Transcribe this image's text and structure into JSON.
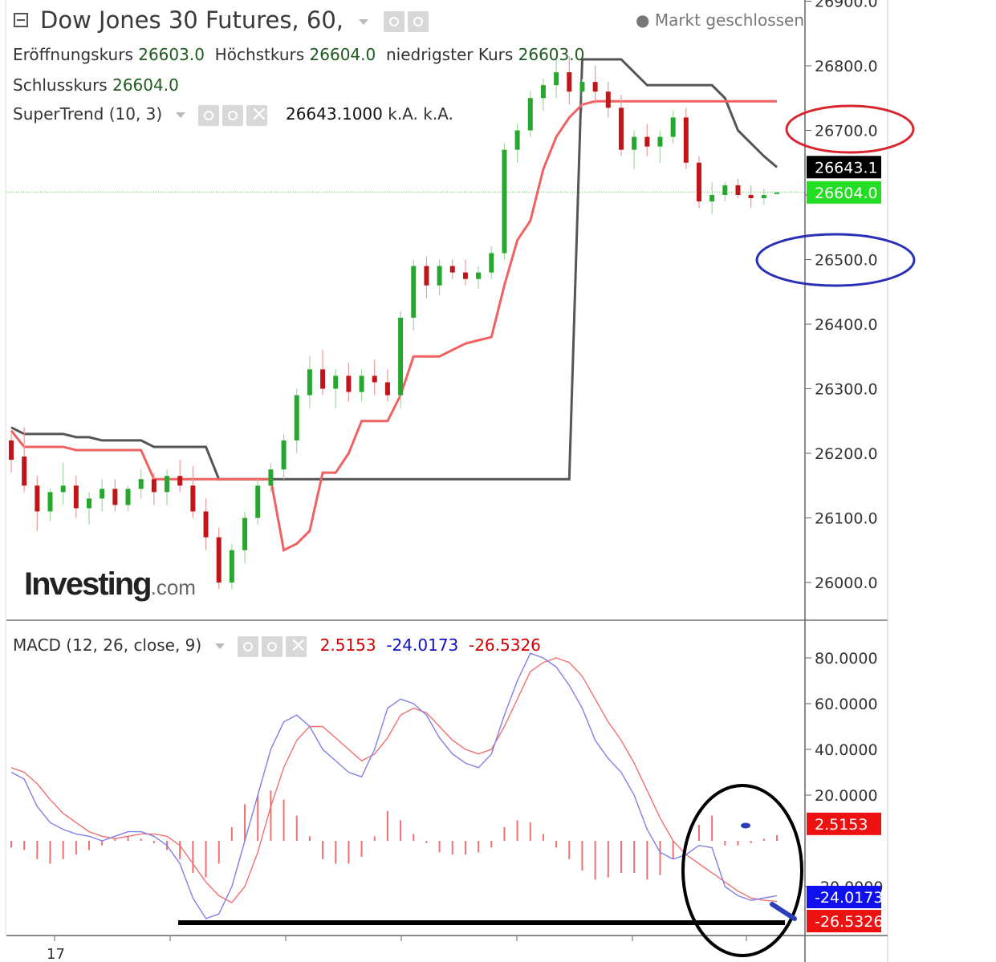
{
  "header": {
    "title": "Dow Jones 30 Futures, 60,",
    "market_status": "Markt geschlossen",
    "ohlc": [
      {
        "label": "Eröffnungskurs",
        "value": "26603.0"
      },
      {
        "label": "Höchstkurs",
        "value": "26604.0"
      },
      {
        "label": "niedrigster Kurs",
        "value": "26603.0"
      },
      {
        "label": "Schlusskurs",
        "value": "26604.0"
      }
    ],
    "supertrend": {
      "label": "SuperTrend (10, 3)",
      "value": "26643.1000",
      "na1": "k.A.",
      "na2": "k.A."
    },
    "macd": {
      "label": "MACD (12, 26, close, 9)",
      "hist": "2.5153",
      "macd": "-24.0173",
      "signal": "-26.5326"
    }
  },
  "logo": {
    "text": "Investing",
    "suffix": ".com"
  },
  "colors": {
    "up": "#26a82f",
    "down": "#c0161a",
    "supertrend_up": "#f06262",
    "supertrend_down": "#555555",
    "macd_line": "#8080e8",
    "signal_line": "#f07070",
    "hist": "#f07070"
  },
  "chart_data": [
    {
      "type": "candlestick",
      "title": "Dow Jones 30 Futures, 60,",
      "ylim": [
        25950,
        26900
      ],
      "y_ticks": [
        "26900.0",
        "26800.0",
        "26700.0",
        "26600.0",
        "26500.0",
        "26400.0",
        "26300.0",
        "26200.0",
        "26100.0",
        "26000.0"
      ],
      "x_tick_labels": [
        "17"
      ],
      "last_price": "26604.0",
      "supertrend_value": "26643.1",
      "candles": [
        [
          26220,
          26230,
          26170,
          26190
        ],
        [
          26195,
          26240,
          26140,
          26150
        ],
        [
          26150,
          26165,
          26080,
          26110
        ],
        [
          26110,
          26145,
          26095,
          26140
        ],
        [
          26140,
          26185,
          26120,
          26150
        ],
        [
          26150,
          26165,
          26100,
          26115
        ],
        [
          26115,
          26140,
          26090,
          26130
        ],
        [
          26130,
          26160,
          26110,
          26145
        ],
        [
          26145,
          26160,
          26110,
          26120
        ],
        [
          26120,
          26150,
          26110,
          26145
        ],
        [
          26145,
          26175,
          26130,
          26160
        ],
        [
          26160,
          26170,
          26120,
          26140
        ],
        [
          26140,
          26175,
          26120,
          26165
        ],
        [
          26165,
          26190,
          26140,
          26150
        ],
        [
          26150,
          26180,
          26100,
          26110
        ],
        [
          26110,
          26130,
          26050,
          26070
        ],
        [
          26070,
          26085,
          25990,
          26000
        ],
        [
          26000,
          26060,
          25990,
          26050
        ],
        [
          26050,
          26110,
          26030,
          26100
        ],
        [
          26100,
          26160,
          26090,
          26150
        ],
        [
          26150,
          26185,
          26140,
          26175
        ],
        [
          26175,
          26230,
          26160,
          26220
        ],
        [
          26220,
          26300,
          26200,
          26290
        ],
        [
          26290,
          26350,
          26270,
          26330
        ],
        [
          26330,
          26360,
          26290,
          26300
        ],
        [
          26300,
          26330,
          26270,
          26320
        ],
        [
          26320,
          26340,
          26280,
          26295
        ],
        [
          26295,
          26330,
          26280,
          26320
        ],
        [
          26320,
          26345,
          26290,
          26310
        ],
        [
          26310,
          26330,
          26280,
          26290
        ],
        [
          26290,
          26420,
          26270,
          26410
        ],
        [
          26410,
          26500,
          26390,
          26490
        ],
        [
          26490,
          26505,
          26440,
          26460
        ],
        [
          26460,
          26500,
          26445,
          26490
        ],
        [
          26490,
          26500,
          26470,
          26480
        ],
        [
          26480,
          26500,
          26460,
          26470
        ],
        [
          26470,
          26490,
          26455,
          26480
        ],
        [
          26480,
          26520,
          26470,
          26510
        ],
        [
          26510,
          26680,
          26500,
          26670
        ],
        [
          26670,
          26710,
          26650,
          26700
        ],
        [
          26700,
          26760,
          26690,
          26750
        ],
        [
          26750,
          26780,
          26730,
          26770
        ],
        [
          26770,
          26810,
          26750,
          26790
        ],
        [
          26790,
          26815,
          26740,
          26760
        ],
        [
          26760,
          26780,
          26730,
          26775
        ],
        [
          26775,
          26800,
          26740,
          26760
        ],
        [
          26760,
          26775,
          26720,
          26735
        ],
        [
          26735,
          26755,
          26660,
          26670
        ],
        [
          26670,
          26700,
          26640,
          26690
        ],
        [
          26690,
          26710,
          26660,
          26675
        ],
        [
          26675,
          26700,
          26650,
          26690
        ],
        [
          26690,
          26730,
          26680,
          26720
        ],
        [
          26720,
          26735,
          26640,
          26650
        ],
        [
          26650,
          26660,
          26580,
          26590
        ],
        [
          26590,
          26620,
          26570,
          26600
        ],
        [
          26600,
          26620,
          26590,
          26615
        ],
        [
          26615,
          26625,
          26595,
          26600
        ],
        [
          26600,
          26615,
          26580,
          26595
        ],
        [
          26595,
          26610,
          26585,
          26600
        ],
        [
          26603,
          26604,
          26603,
          26604
        ]
      ],
      "supertrend": [
        26235,
        26210,
        26210,
        26210,
        26210,
        26205,
        26205,
        26205,
        26205,
        26205,
        26205,
        26160,
        26160,
        26160,
        26160,
        26160,
        26160,
        26160,
        26160,
        26160,
        26160,
        26050,
        26060,
        26080,
        26170,
        26170,
        26200,
        26250,
        26250,
        26250,
        26290,
        26350,
        26350,
        26350,
        26360,
        26370,
        26375,
        26380,
        26460,
        26530,
        26560,
        26640,
        26690,
        26720,
        26740,
        26745,
        26745,
        26745,
        26745,
        26745,
        26745,
        26745,
        26745,
        26745,
        26745,
        26745,
        26745,
        26745,
        26745,
        26745
      ],
      "supertrend_resistance": [
        26240,
        26230,
        26230,
        26230,
        26230,
        26225,
        26225,
        26220,
        26220,
        26220,
        26220,
        26210,
        26210,
        26210,
        26210,
        26210,
        26160,
        26160,
        26160,
        26160,
        26160,
        26160,
        26160,
        26160,
        26160,
        26160,
        26160,
        26160,
        26160,
        26160,
        26160,
        26160,
        26160,
        26160,
        26160,
        26160,
        26160,
        26160,
        26160,
        26160,
        26160,
        26160,
        26160,
        26160,
        26810,
        26810,
        26810,
        26810,
        26790,
        26770,
        26770,
        26770,
        26770,
        26770,
        26770,
        26750,
        26700,
        26680,
        26660,
        26643
      ]
    },
    {
      "type": "line",
      "title": "MACD (12, 26, close, 9)",
      "ylim": [
        -40,
        90
      ],
      "y_ticks": [
        "80.0000",
        "60.0000",
        "40.0000",
        "20.0000",
        "-20.0000"
      ],
      "series": [
        {
          "name": "MACD",
          "values": [
            30,
            27,
            15,
            8,
            5,
            3,
            2,
            0,
            2,
            4,
            4,
            2,
            -2,
            -10,
            -25,
            -34,
            -32,
            -20,
            0,
            20,
            40,
            52,
            55,
            50,
            40,
            35,
            30,
            28,
            40,
            58,
            62,
            60,
            55,
            45,
            38,
            34,
            32,
            38,
            55,
            70,
            82,
            80,
            76,
            68,
            58,
            44,
            36,
            30,
            20,
            5,
            -5,
            -8,
            -6,
            -2,
            -3,
            -20,
            -24,
            -26,
            -25,
            -24
          ]
        },
        {
          "name": "Signal",
          "values": [
            32,
            30,
            25,
            18,
            12,
            8,
            4,
            2,
            1,
            2,
            3,
            3,
            2,
            -2,
            -10,
            -18,
            -24,
            -27,
            -20,
            -5,
            15,
            32,
            44,
            50,
            50,
            45,
            40,
            35,
            38,
            45,
            55,
            58,
            56,
            50,
            44,
            40,
            38,
            40,
            50,
            62,
            74,
            78,
            80,
            78,
            72,
            62,
            52,
            44,
            34,
            22,
            10,
            0,
            -6,
            -10,
            -14,
            -18,
            -22,
            -25,
            -26,
            -26.5
          ]
        },
        {
          "name": "Histogram",
          "values": [
            -3,
            -4,
            -8,
            -10,
            -8,
            -6,
            -4,
            -2,
            1,
            2,
            1,
            -1,
            -4,
            -8,
            -14,
            -16,
            -10,
            6,
            16,
            20,
            22,
            18,
            11,
            2,
            -8,
            -10,
            -10,
            -7,
            2,
            13,
            9,
            3,
            -1,
            -5,
            -6,
            -6,
            -5,
            -3,
            6,
            9,
            8,
            3,
            -3,
            -8,
            -13,
            -17,
            -16,
            -14,
            -14,
            -17,
            -15,
            -8,
            -1,
            7,
            11,
            -2,
            -2,
            -1,
            1,
            2.5
          ]
        }
      ],
      "last_values": {
        "histogram": "2.5153",
        "macd": "-24.0173",
        "signal": "-26.5326"
      }
    }
  ]
}
